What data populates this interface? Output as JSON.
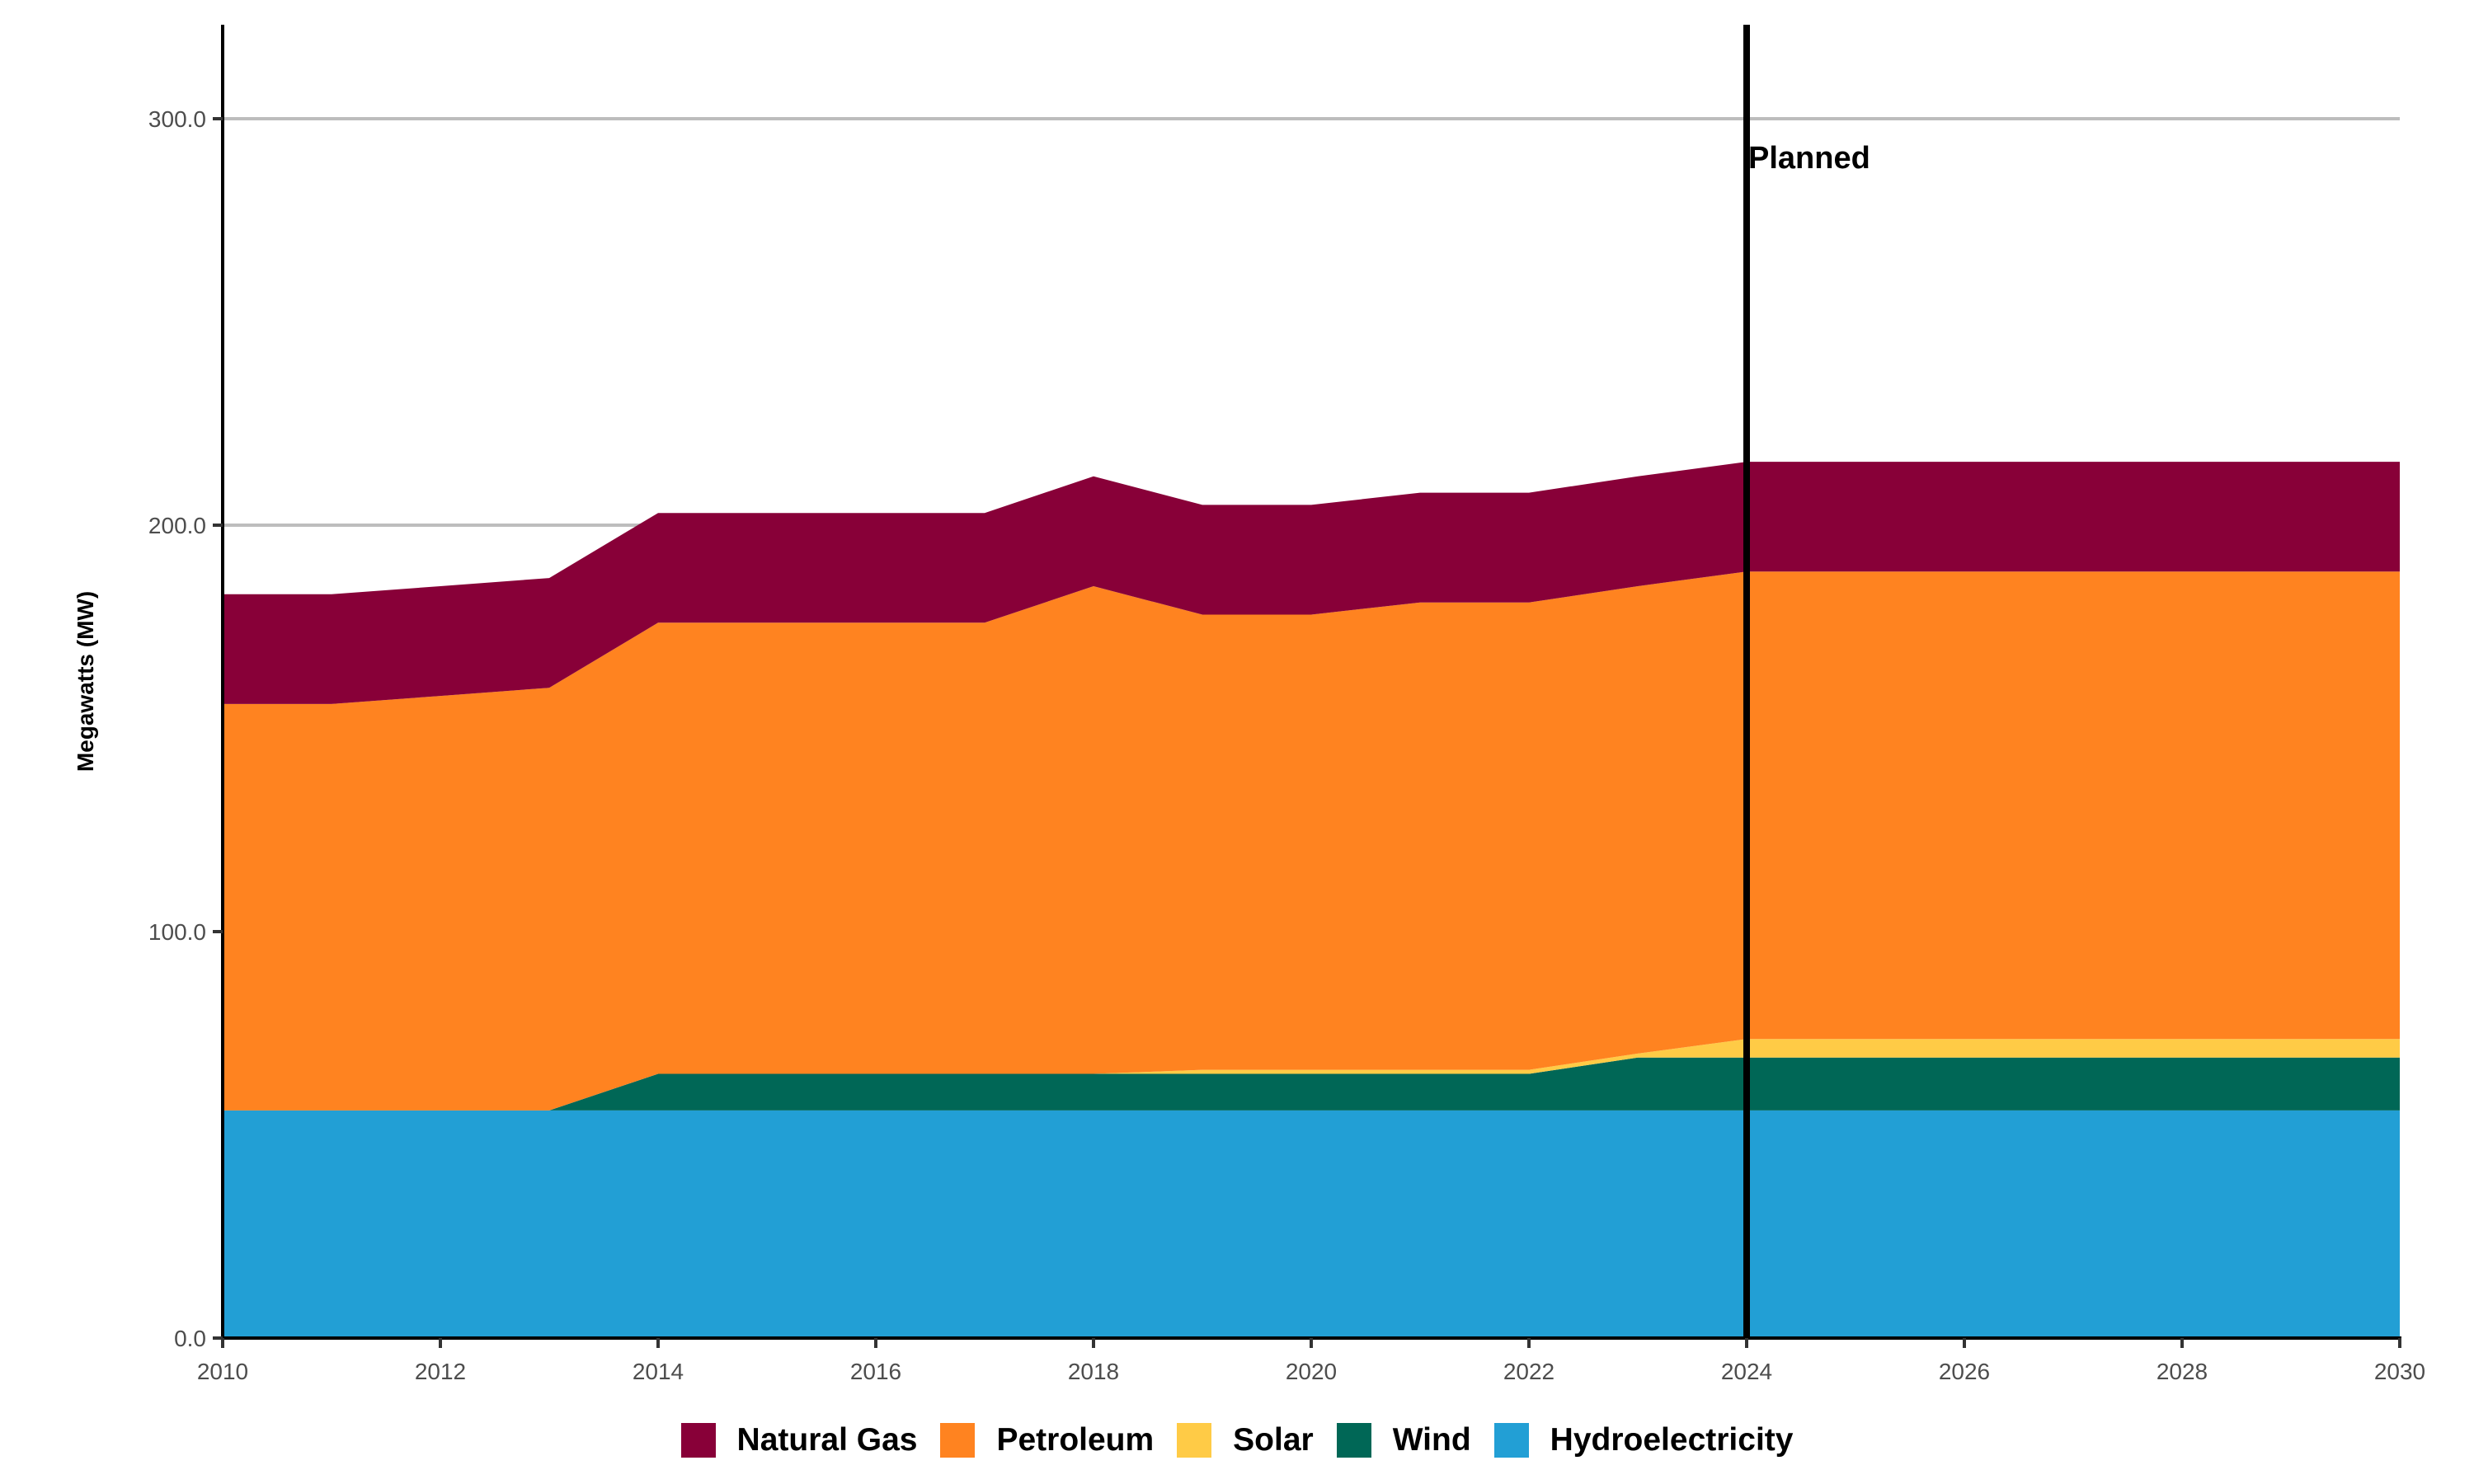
{
  "chart_data": {
    "type": "area",
    "stacked": true,
    "title": "",
    "xlabel": "",
    "ylabel": "Megawatts (MW)",
    "x": [
      2010,
      2011,
      2012,
      2013,
      2014,
      2015,
      2016,
      2017,
      2018,
      2019,
      2020,
      2021,
      2022,
      2023,
      2024,
      2025,
      2026,
      2027,
      2028,
      2029,
      2030
    ],
    "xlim": [
      2010,
      2030
    ],
    "ylim": [
      0,
      320
    ],
    "xticks": [
      "2010",
      "2012",
      "2014",
      "2016",
      "2018",
      "2020",
      "2022",
      "2024",
      "2026",
      "2028",
      "2030"
    ],
    "xtick_values": [
      2010,
      2012,
      2014,
      2016,
      2018,
      2020,
      2022,
      2024,
      2026,
      2028,
      2030
    ],
    "yticks": [
      "0.0",
      "100.0",
      "200.0",
      "300.0"
    ],
    "ytick_values": [
      0,
      100,
      200,
      300
    ],
    "grid": "horizontal major",
    "legend_position": "bottom",
    "series": [
      {
        "name": "Hydroelectricity",
        "color": "#229FD5",
        "values": [
          56,
          56,
          56,
          56,
          56,
          56,
          56,
          56,
          56,
          56,
          56,
          56,
          56,
          56,
          56,
          56,
          56,
          56,
          56,
          56,
          56
        ]
      },
      {
        "name": "Wind",
        "color": "#006756",
        "values": [
          0,
          0,
          0,
          0,
          9,
          9,
          9,
          9,
          9,
          9,
          9,
          9,
          9,
          13,
          13,
          13,
          13,
          13,
          13,
          13,
          13
        ]
      },
      {
        "name": "Solar",
        "color": "#FFCB46",
        "values": [
          0,
          0,
          0,
          0,
          0,
          0,
          0,
          0,
          0,
          1,
          1,
          1,
          1,
          1,
          4.6,
          4.6,
          4.6,
          4.6,
          4.6,
          4.6,
          4.6
        ]
      },
      {
        "name": "Petroleum",
        "color": "#FF8320",
        "values": [
          100,
          100,
          102,
          104,
          111,
          111,
          111,
          111,
          120,
          112,
          112,
          115,
          115,
          115,
          115,
          115,
          115,
          115,
          115,
          115,
          115
        ]
      },
      {
        "name": "Natural Gas",
        "color": "#880038",
        "values": [
          27,
          27,
          27,
          27,
          27,
          27,
          27,
          27,
          27,
          27,
          27,
          27,
          27,
          27,
          27,
          27,
          27,
          27,
          27,
          27,
          27
        ]
      }
    ],
    "legend_order": [
      "Natural Gas",
      "Petroleum",
      "Solar",
      "Wind",
      "Hydroelectricity"
    ],
    "annotations": [
      {
        "type": "vline",
        "x": 2024,
        "label": "Planned"
      }
    ]
  },
  "legend": {
    "items": [
      {
        "label": "Natural Gas",
        "color": "#880038"
      },
      {
        "label": "Petroleum",
        "color": "#FF8320"
      },
      {
        "label": "Solar",
        "color": "#FFCB46"
      },
      {
        "label": "Wind",
        "color": "#006756"
      },
      {
        "label": "Hydroelectricity",
        "color": "#229FD5"
      }
    ]
  }
}
